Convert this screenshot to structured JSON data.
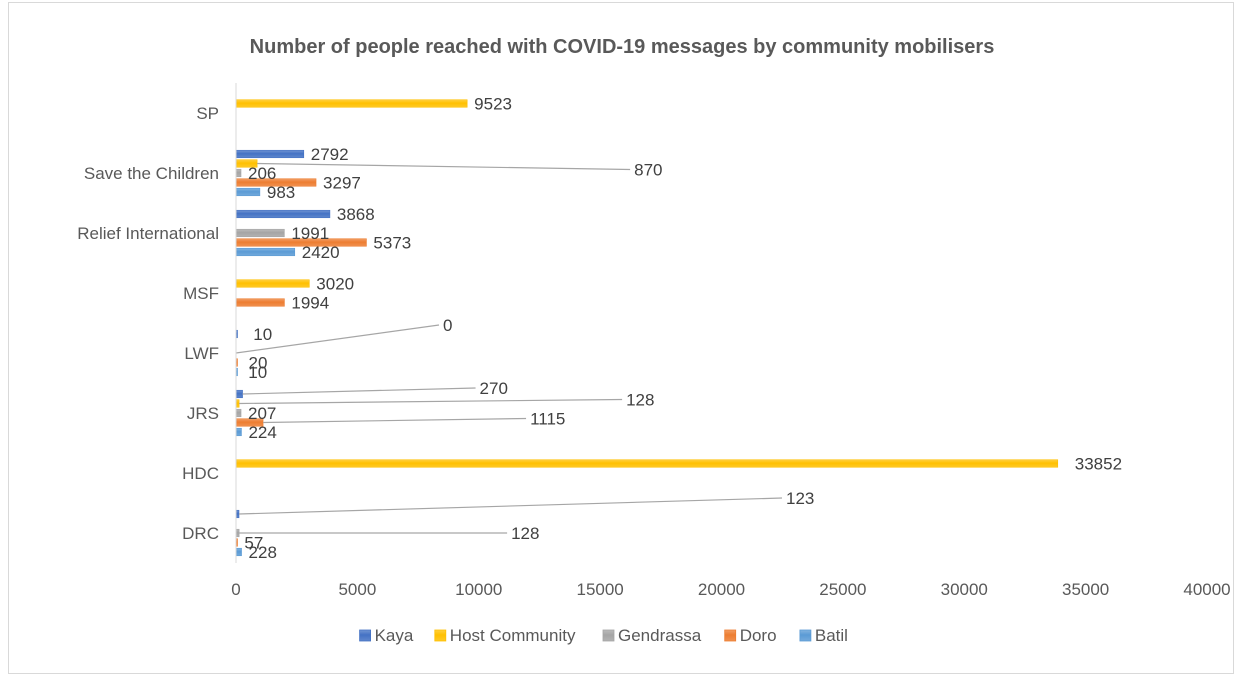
{
  "chart_data": {
    "type": "bar",
    "orientation": "horizontal",
    "title": "Number of people reached with COVID-19 messages by community mobilisers",
    "categories": [
      "SP",
      "Save the Children",
      "Relief International",
      "MSF",
      "LWF",
      "JRS",
      "HDC",
      "DRC"
    ],
    "series": [
      {
        "name": "Kaya",
        "color": "#4472c4",
        "values": [
          null,
          2792,
          3868,
          null,
          10,
          270,
          null,
          123
        ]
      },
      {
        "name": "Host Community",
        "color": "#ffc000",
        "values": [
          9523,
          870,
          null,
          3020,
          null,
          128,
          33852,
          null
        ]
      },
      {
        "name": "Gendrassa",
        "color": "#a5a5a5",
        "values": [
          null,
          206,
          1991,
          null,
          0,
          207,
          null,
          128
        ]
      },
      {
        "name": "Doro",
        "color": "#ed7d31",
        "values": [
          null,
          3297,
          5373,
          1994,
          20,
          1115,
          null,
          57
        ]
      },
      {
        "name": "Batil",
        "color": "#5b9bd5",
        "values": [
          null,
          983,
          2420,
          null,
          10,
          224,
          null,
          228
        ]
      }
    ],
    "xlim": [
      0,
      40000
    ],
    "x_ticks": [
      "0",
      "5000",
      "10000",
      "15000",
      "20000",
      "25000",
      "30000",
      "35000",
      "40000"
    ],
    "legend_position": "bottom",
    "grid": false
  }
}
